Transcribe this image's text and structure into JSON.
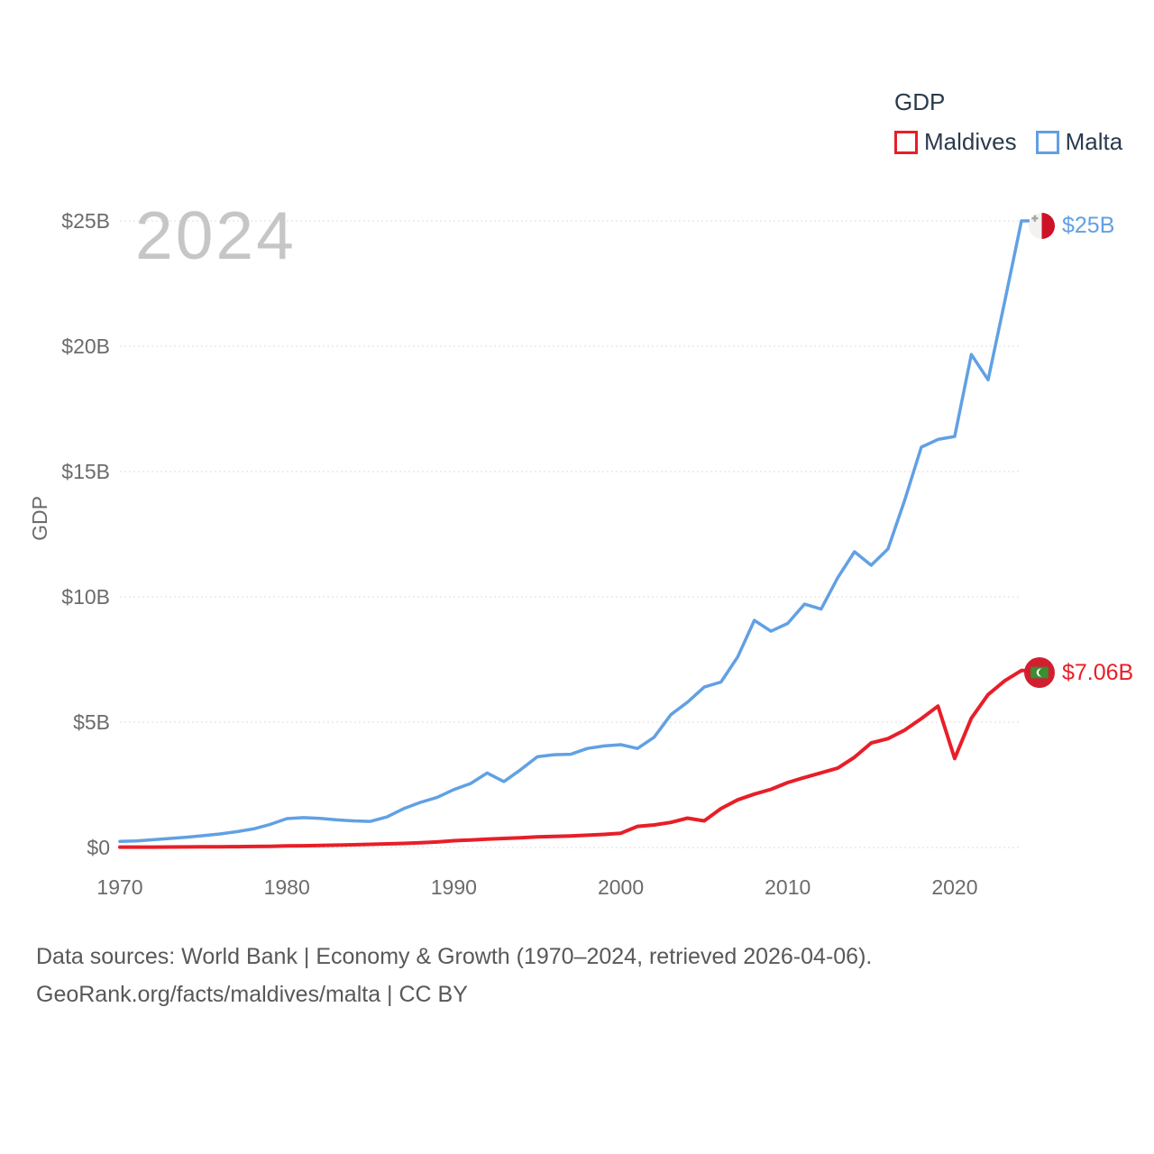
{
  "watermark": "2024",
  "legend": {
    "title": "GDP",
    "items": [
      {
        "label": "Maldives",
        "color": "#e81e28"
      },
      {
        "label": "Malta",
        "color": "#61a0e4"
      }
    ]
  },
  "y_axis": {
    "title": "GDP",
    "ticks": [
      {
        "value": 0,
        "label": "$0"
      },
      {
        "value": 5,
        "label": "$5B"
      },
      {
        "value": 10,
        "label": "$10B"
      },
      {
        "value": 15,
        "label": "$15B"
      },
      {
        "value": 20,
        "label": "$20B"
      },
      {
        "value": 25,
        "label": "$25B"
      }
    ]
  },
  "x_axis": {
    "ticks": [
      {
        "value": 1970,
        "label": "1970"
      },
      {
        "value": 1980,
        "label": "1980"
      },
      {
        "value": 1990,
        "label": "1990"
      },
      {
        "value": 2000,
        "label": "2000"
      },
      {
        "value": 2010,
        "label": "2010"
      },
      {
        "value": 2020,
        "label": "2020"
      }
    ]
  },
  "end_labels": {
    "malta": {
      "text": "$25B",
      "color": "#61a0e4"
    },
    "maldives": {
      "text": "$7.06B",
      "color": "#e81e28"
    }
  },
  "footer": {
    "line1": "Data sources: World Bank | Economy & Growth (1970–2024, retrieved 2026-04-06).",
    "line2": "GeoRank.org/facts/maldives/malta | CC BY"
  },
  "chart_data": {
    "type": "line",
    "title": "GDP",
    "xlabel": "",
    "ylabel": "GDP",
    "xlim": [
      1970,
      2024
    ],
    "ylim": [
      0,
      25
    ],
    "grid": true,
    "legend_position": "top-right",
    "units": "billions of current US$",
    "x": [
      1970,
      1971,
      1972,
      1973,
      1974,
      1975,
      1976,
      1977,
      1978,
      1979,
      1980,
      1981,
      1982,
      1983,
      1984,
      1985,
      1986,
      1987,
      1988,
      1989,
      1990,
      1991,
      1992,
      1993,
      1994,
      1995,
      1996,
      1997,
      1998,
      1999,
      2000,
      2001,
      2002,
      2003,
      2004,
      2005,
      2006,
      2007,
      2008,
      2009,
      2010,
      2011,
      2012,
      2013,
      2014,
      2015,
      2016,
      2017,
      2018,
      2019,
      2020,
      2021,
      2022,
      2023,
      2024
    ],
    "series": [
      {
        "name": "Maldives",
        "color": "#e81e28",
        "final_label": "$7.06B",
        "values": [
          0.013,
          0.014,
          0.016,
          0.018,
          0.021,
          0.025,
          0.028,
          0.032,
          0.038,
          0.048,
          0.061,
          0.07,
          0.08,
          0.092,
          0.108,
          0.127,
          0.143,
          0.163,
          0.19,
          0.22,
          0.268,
          0.3,
          0.33,
          0.36,
          0.39,
          0.42,
          0.44,
          0.46,
          0.49,
          0.52,
          0.57,
          0.84,
          0.9,
          1.0,
          1.17,
          1.06,
          1.55,
          1.9,
          2.13,
          2.32,
          2.59,
          2.79,
          2.98,
          3.17,
          3.6,
          4.17,
          4.34,
          4.68,
          5.14,
          5.64,
          3.55,
          5.16,
          6.1,
          6.65,
          7.06
        ]
      },
      {
        "name": "Malta",
        "color": "#61a0e4",
        "final_label": "$25B",
        "values": [
          0.24,
          0.26,
          0.31,
          0.36,
          0.41,
          0.47,
          0.54,
          0.63,
          0.74,
          0.92,
          1.15,
          1.19,
          1.16,
          1.1,
          1.06,
          1.04,
          1.22,
          1.55,
          1.8,
          2.0,
          2.31,
          2.55,
          2.97,
          2.63,
          3.1,
          3.62,
          3.7,
          3.72,
          3.95,
          4.05,
          4.1,
          3.95,
          4.4,
          5.3,
          5.8,
          6.4,
          6.6,
          7.6,
          9.06,
          8.63,
          8.94,
          9.71,
          9.51,
          10.77,
          11.8,
          11.26,
          11.91,
          13.85,
          15.97,
          16.28,
          16.4,
          19.67,
          18.66,
          21.8,
          25.0
        ]
      }
    ]
  }
}
